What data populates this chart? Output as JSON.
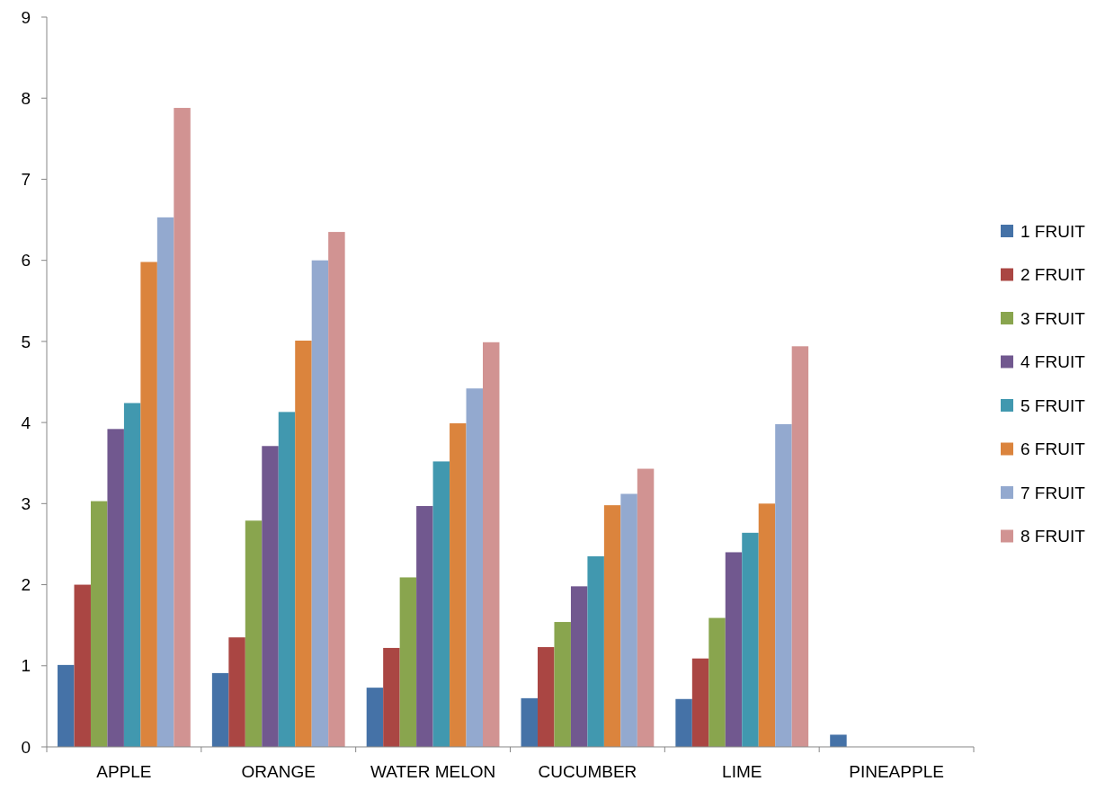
{
  "chart_data": {
    "type": "bar",
    "categories": [
      "APPLE",
      "ORANGE",
      "WATER MELON",
      "CUCUMBER",
      "LIME",
      "PINEAPPLE"
    ],
    "ylim": [
      0,
      9
    ],
    "yticks": [
      0,
      1,
      2,
      3,
      4,
      5,
      6,
      7,
      8,
      9
    ],
    "grid": false,
    "legend": "right",
    "series": [
      {
        "name": "1 FRUIT",
        "color": "#4572a7",
        "values": [
          1.01,
          0.91,
          0.73,
          0.6,
          0.59,
          0.15
        ]
      },
      {
        "name": "2 FRUIT",
        "color": "#aa4643",
        "values": [
          2.0,
          1.35,
          1.22,
          1.23,
          1.09,
          0
        ]
      },
      {
        "name": "3 FRUIT",
        "color": "#89a54e",
        "values": [
          3.03,
          2.79,
          2.09,
          1.54,
          1.59,
          0
        ]
      },
      {
        "name": "4 FRUIT",
        "color": "#71588f",
        "values": [
          3.92,
          3.71,
          2.97,
          1.98,
          2.4,
          0
        ]
      },
      {
        "name": "5 FRUIT",
        "color": "#4198af",
        "values": [
          4.24,
          4.13,
          3.52,
          2.35,
          2.64,
          0
        ]
      },
      {
        "name": "6 FRUIT",
        "color": "#db843d",
        "values": [
          5.98,
          5.01,
          3.99,
          2.98,
          3.0,
          0
        ]
      },
      {
        "name": "7 FRUIT",
        "color": "#93a9cf",
        "values": [
          6.53,
          6.0,
          4.42,
          3.12,
          3.98,
          0
        ]
      },
      {
        "name": "8 FRUIT",
        "color": "#d19392",
        "values": [
          7.88,
          6.35,
          4.99,
          3.43,
          4.94,
          0
        ]
      }
    ]
  }
}
